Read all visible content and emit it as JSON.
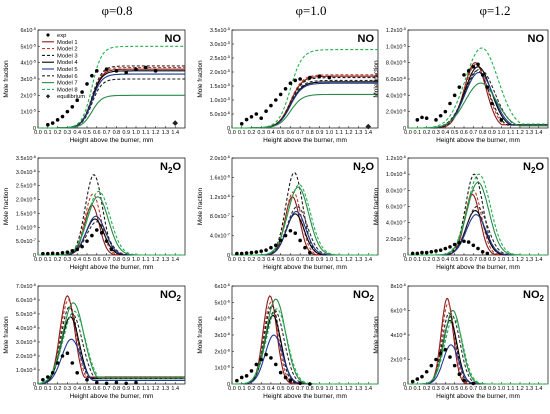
{
  "column_titles": [
    "φ=0.8",
    "φ=1.0",
    "φ=1.2"
  ],
  "legend": {
    "entries": [
      "exp",
      "Model 1",
      "Model 2",
      "Model 3",
      "Model 4",
      "Model 5",
      "Model 6",
      "Model 7",
      "Model 8",
      "equilibrium"
    ],
    "colors": [
      "#000000",
      "#8b1a1a",
      "#c0392b",
      "#1a1a1a",
      "#000000",
      "#1f3a93",
      "#2a2a2a",
      "#2a8a4a",
      "#22b14c",
      "#000000"
    ]
  },
  "series_styles": [
    {
      "color": "#8b1a1a",
      "dash": "none"
    },
    {
      "color": "#c0392b",
      "dash": "3,2"
    },
    {
      "color": "#1a1a1a",
      "dash": "3,2"
    },
    {
      "color": "#000000",
      "dash": "none"
    },
    {
      "color": "#1f3a93",
      "dash": "none"
    },
    {
      "color": "#2a2a2a",
      "dash": "3,2"
    },
    {
      "color": "#2a8a4a",
      "dash": "none"
    },
    {
      "color": "#22b14c",
      "dash": "3,2"
    }
  ],
  "chart_data": [
    {
      "type": "line",
      "species": "NO",
      "species_sub": "",
      "phi": "φ=0.8",
      "xlabel": "Height above the burner, mm",
      "ylabel": "Mole fraction",
      "xlim": [
        0,
        1.5
      ],
      "xticks": [
        "0.0",
        "0.1",
        "0.2",
        "0.3",
        "0.4",
        "0.5",
        "0.6",
        "0.7",
        "0.8",
        "0.9",
        "1.0",
        "1.1",
        "1.2",
        "1.3",
        "1.4"
      ],
      "ylim": [
        0,
        6e-05
      ],
      "yticks": [
        "0",
        "1x10-5",
        "2x10-5",
        "3x10-5",
        "4x10-5",
        "5x10-5",
        "6x10-5"
      ],
      "curve": {
        "type": "sigmoid",
        "mid": 0.55,
        "width": 0.05
      },
      "final_values": [
        3.6e-05,
        3.7e-05,
        3e-05,
        3.5e-05,
        3.3e-05,
        3.8e-05,
        2e-05,
        5e-05
      ],
      "exp_x": [
        0.1,
        0.15,
        0.2,
        0.25,
        0.3,
        0.35,
        0.4,
        0.45,
        0.5,
        0.55,
        0.6,
        0.7,
        0.8,
        0.9,
        1.0,
        1.1,
        1.2
      ],
      "exp_y": [
        2e-06,
        3e-06,
        5e-06,
        7e-06,
        1e-05,
        1.3e-05,
        1.7e-05,
        2.2e-05,
        2.7e-05,
        3.2e-05,
        3.5e-05,
        3.6e-05,
        3.5e-05,
        3.4e-05,
        3.6e-05,
        3.7e-05,
        3.5e-05
      ],
      "equilibrium": {
        "x": 1.4,
        "y": 3e-06
      },
      "show_legend": true
    },
    {
      "type": "line",
      "species": "NO",
      "species_sub": "",
      "phi": "φ=1.0",
      "xlabel": "Height above the burner, mm",
      "ylabel": "Mole fraction",
      "xlim": [
        0,
        1.5
      ],
      "xticks": [
        "0.0",
        "0.1",
        "0.2",
        "0.3",
        "0.4",
        "0.5",
        "0.6",
        "0.7",
        "0.8",
        "0.9",
        "1.0",
        "1.1",
        "1.2",
        "1.3",
        "1.4"
      ],
      "ylim": [
        0,
        3.5e-05
      ],
      "yticks": [
        "0",
        "5.0x10-6",
        "1.0x10-5",
        "1.5x10-5",
        "2.0x10-5",
        "2.5x10-5",
        "3.0x10-5",
        "3.5x10-5"
      ],
      "curve": {
        "type": "sigmoid",
        "mid": 0.6,
        "width": 0.06
      },
      "final_values": [
        1.85e-05,
        1.9e-05,
        1.8e-05,
        1.65e-05,
        1.6e-05,
        1.7e-05,
        1.2e-05,
        2.8e-05
      ],
      "exp_x": [
        0.1,
        0.15,
        0.2,
        0.25,
        0.3,
        0.35,
        0.4,
        0.45,
        0.5,
        0.55,
        0.6,
        0.65,
        0.7,
        0.8,
        0.9,
        1.0
      ],
      "exp_y": [
        1.5e-06,
        3e-06,
        4e-06,
        5e-06,
        3.5e-06,
        6e-06,
        8e-06,
        1e-05,
        1.2e-05,
        1.4e-05,
        1.6e-05,
        1.7e-05,
        1.75e-05,
        1.8e-05,
        1.85e-05,
        1.8e-05
      ],
      "equilibrium": {
        "x": 1.4,
        "y": 5e-07
      },
      "show_legend": false
    },
    {
      "type": "line",
      "species": "NO",
      "species_sub": "",
      "phi": "φ=1.2",
      "xlabel": "Height above the burner, mm",
      "ylabel": "Mole fraction",
      "xlim": [
        0,
        1.5
      ],
      "xticks": [
        "0.0",
        "0.1",
        "0.2",
        "0.3",
        "0.4",
        "0.5",
        "0.6",
        "0.7",
        "0.8",
        "0.9",
        "1.0",
        "1.1",
        "1.2",
        "1.3",
        "1.4"
      ],
      "ylim": [
        0,
        1.2e-05
      ],
      "yticks": [
        "0",
        "2.0x10-6",
        "4.0x10-6",
        "6.0x10-6",
        "8.0x10-6",
        "1.0x10-5",
        "1.2x10-5"
      ],
      "curve": {
        "type": "peak",
        "peak_x": 0.75,
        "width": 0.2,
        "tail": 0.05
      },
      "peak_values": [
        8e-06,
        7.8e-06,
        7e-06,
        7.5e-06,
        6.8e-06,
        7.2e-06,
        5.5e-06,
        9.8e-06
      ],
      "exp_x": [
        0.1,
        0.15,
        0.2,
        0.3,
        0.35,
        0.4,
        0.45,
        0.5,
        0.55,
        0.6,
        0.65,
        0.7,
        0.75,
        0.8,
        0.85,
        0.9,
        1.0
      ],
      "exp_y": [
        1e-06,
        1.3e-06,
        1.2e-06,
        1e-06,
        1.5e-06,
        2e-06,
        3e-06,
        4e-06,
        5e-06,
        6.5e-06,
        7e-06,
        7.5e-06,
        7.8e-06,
        6.5e-06,
        5e-06,
        3e-06,
        1e-06
      ],
      "show_legend": false
    },
    {
      "type": "line",
      "species": "N",
      "species_sub": "2",
      "species_tail": "O",
      "phi": "φ=0.8",
      "xlabel": "Height above the burner, mm",
      "ylabel": "Mole fraction",
      "xlim": [
        0,
        1.5
      ],
      "xticks": [
        "0.0",
        "0.1",
        "0.2",
        "0.3",
        "0.4",
        "0.5",
        "0.6",
        "0.7",
        "0.8",
        "0.9",
        "1.0",
        "1.1",
        "1.2",
        "1.3",
        "1.4"
      ],
      "ylim": [
        0,
        3.5e-06
      ],
      "yticks": [
        "0",
        "5.0x10-7",
        "1.0x10-6",
        "1.5x10-6",
        "2.0x10-6",
        "2.5x10-6",
        "3.0x10-6",
        "3.5x10-6"
      ],
      "curve": {
        "type": "peak",
        "peak_x": 0.58,
        "width": 0.13,
        "tail": 0.0
      },
      "peak_values": [
        1.8e-06,
        2.2e-06,
        2.9e-06,
        1.3e-06,
        1.4e-06,
        1.2e-06,
        2.1e-06,
        2.3e-06
      ],
      "exp_x": [
        0.05,
        0.1,
        0.15,
        0.2,
        0.25,
        0.3,
        0.35,
        0.4,
        0.45,
        0.5,
        0.55,
        0.6,
        0.65,
        0.7,
        0.75
      ],
      "exp_y": [
        5e-08,
        5e-08,
        6e-08,
        5e-08,
        8e-08,
        1e-07,
        1.5e-07,
        2e-07,
        3e-07,
        5e-07,
        7e-07,
        9e-07,
        8e-07,
        5e-07,
        2e-07
      ],
      "show_legend": false
    },
    {
      "type": "line",
      "species": "N",
      "species_sub": "2",
      "species_tail": "O",
      "phi": "φ=1.0",
      "xlabel": "Height above the burner, mm",
      "ylabel": "Mole fraction",
      "xlim": [
        0,
        1.5
      ],
      "xticks": [
        "0.0",
        "0.1",
        "0.2",
        "0.3",
        "0.4",
        "0.5",
        "0.6",
        "0.7",
        "0.8",
        "0.9",
        "1.0",
        "1.1",
        "1.2",
        "1.3",
        "1.4"
      ],
      "ylim": [
        0,
        2e-06
      ],
      "yticks": [
        "0",
        "4.0x10-7",
        "8.0x10-7",
        "1.2x10-6",
        "1.6x10-6",
        "2.0x10-6"
      ],
      "curve": {
        "type": "peak",
        "peak_x": 0.65,
        "width": 0.13,
        "tail": 0.0
      },
      "peak_values": [
        1.2e-06,
        1.3e-06,
        1.7e-06,
        8.5e-07,
        9e-07,
        1e-06,
        1.4e-06,
        1.45e-06
      ],
      "exp_x": [
        0.05,
        0.1,
        0.15,
        0.2,
        0.25,
        0.3,
        0.35,
        0.4,
        0.45,
        0.5,
        0.55,
        0.6,
        0.65,
        0.7,
        0.75,
        0.8
      ],
      "exp_y": [
        3e-08,
        3e-08,
        4e-08,
        5e-08,
        6e-08,
        8e-08,
        1e-07,
        1.5e-07,
        2e-07,
        3e-07,
        4e-07,
        5e-07,
        4.5e-07,
        3e-07,
        1.5e-07,
        5e-08
      ],
      "show_legend": false
    },
    {
      "type": "line",
      "species": "N",
      "species_sub": "2",
      "species_tail": "O",
      "phi": "φ=1.2",
      "xlabel": "Height above the burner, mm",
      "ylabel": "Mole fraction",
      "xlim": [
        0,
        1.5
      ],
      "xticks": [
        "0.0",
        "0.1",
        "0.2",
        "0.3",
        "0.4",
        "0.5",
        "0.6",
        "0.7",
        "0.8",
        "0.9",
        "1.0",
        "1.1",
        "1.2",
        "1.3",
        "1.4"
      ],
      "ylim": [
        0,
        1.2e-06
      ],
      "yticks": [
        "0",
        "2.0x10-7",
        "4.0x10-7",
        "6.0x10-7",
        "8.0x10-7",
        "1.0x10-6",
        "1.2x10-6"
      ],
      "curve": {
        "type": "peak",
        "peak_x": 0.72,
        "width": 0.14,
        "tail": 0.0
      },
      "peak_values": [
        7.5e-07,
        8e-07,
        1e-06,
        5.5e-07,
        5e-07,
        6e-07,
        9e-07,
        1e-06
      ],
      "exp_x": [
        0.05,
        0.1,
        0.15,
        0.2,
        0.25,
        0.3,
        0.35,
        0.4,
        0.45,
        0.5,
        0.55,
        0.6,
        0.65,
        0.7,
        0.75,
        0.8,
        0.85
      ],
      "exp_y": [
        2e-08,
        2e-08,
        3e-08,
        3e-08,
        4e-08,
        5e-08,
        6e-08,
        8e-08,
        1e-07,
        1.3e-07,
        1.5e-07,
        1.7e-07,
        1.6e-07,
        1.2e-07,
        8e-08,
        4e-08,
        2e-08
      ],
      "show_legend": false
    },
    {
      "type": "line",
      "species": "NO",
      "species_sub": "2",
      "species_tail": "",
      "phi": "φ=0.8",
      "xlabel": "Height above the burner, mm",
      "ylabel": "Mole fraction",
      "xlim": [
        0,
        1.5
      ],
      "xticks": [
        "0.0",
        "0.1",
        "0.2",
        "0.3",
        "0.4",
        "0.5",
        "0.6",
        "0.7",
        "0.8",
        "0.9",
        "1.0",
        "1.1",
        "1.2",
        "1.3",
        "1.4"
      ],
      "ylim": [
        0,
        7e-06
      ],
      "yticks": [
        "0",
        "1.0x10-6",
        "2.0x10-6",
        "3.0x10-6",
        "4.0x10-6",
        "5.0x10-6",
        "6.0x10-6",
        "7.0x10-6"
      ],
      "curve": {
        "type": "peak",
        "peak_x": 0.33,
        "width": 0.13,
        "tail": 0.08
      },
      "peak_values": [
        6.3e-06,
        6e-06,
        5.5e-06,
        4.8e-06,
        3.2e-06,
        5e-06,
        5.8e-06,
        5.2e-06
      ],
      "exp_x": [
        0.05,
        0.1,
        0.15,
        0.2,
        0.25,
        0.3,
        0.35,
        0.4,
        0.5,
        0.6,
        0.7,
        0.8,
        0.9,
        1.0
      ],
      "exp_y": [
        3e-07,
        5e-07,
        8e-07,
        1.5e-06,
        2e-06,
        2.2e-06,
        1.5e-06,
        8e-07,
        3e-07,
        1e-07,
        5e-08,
        1e-07,
        5e-08,
        1e-07
      ],
      "show_legend": false
    },
    {
      "type": "line",
      "species": "NO",
      "species_sub": "2",
      "species_tail": "",
      "phi": "φ=1.0",
      "xlabel": "Height above the burner, mm",
      "ylabel": "Mole fraction",
      "xlim": [
        0,
        1.5
      ],
      "xticks": [
        "0.0",
        "0.1",
        "0.2",
        "0.3",
        "0.4",
        "0.5",
        "0.6",
        "0.7",
        "0.8",
        "0.9",
        "1.0",
        "1.1",
        "1.2",
        "1.3",
        "1.4"
      ],
      "ylim": [
        0,
        6e-06
      ],
      "yticks": [
        "0",
        "1x10-6",
        "2x10-6",
        "3x10-6",
        "4x10-6",
        "5x10-6",
        "6x10-6"
      ],
      "curve": {
        "type": "peak",
        "peak_x": 0.42,
        "width": 0.12,
        "tail": 0.0
      },
      "peak_values": [
        5.4e-06,
        5e-06,
        4.8e-06,
        4.2e-06,
        3e-06,
        4.5e-06,
        5.2e-06,
        4.6e-06
      ],
      "exp_x": [
        0.05,
        0.1,
        0.15,
        0.2,
        0.25,
        0.3,
        0.35,
        0.4,
        0.45,
        0.5,
        0.55,
        0.6,
        0.7,
        0.8
      ],
      "exp_y": [
        2e-07,
        4e-07,
        5e-07,
        8e-07,
        1.2e-06,
        1.5e-06,
        1.8e-06,
        1.6e-06,
        1.2e-06,
        7e-07,
        4e-07,
        2e-07,
        5e-08,
        0.0
      ],
      "show_legend": false
    },
    {
      "type": "line",
      "species": "NO",
      "species_sub": "2",
      "species_tail": "",
      "phi": "φ=1.2",
      "xlabel": "Height above the burner, mm",
      "ylabel": "Mole fraction",
      "xlim": [
        0,
        1.5
      ],
      "xticks": [
        "0.0",
        "0.1",
        "0.2",
        "0.3",
        "0.4",
        "0.5",
        "0.6",
        "0.7",
        "0.8",
        "0.9",
        "1.0",
        "1.1",
        "1.2",
        "1.3",
        "1.4"
      ],
      "ylim": [
        0,
        8e-06
      ],
      "yticks": [
        "0",
        "2x10-6",
        "4x10-6",
        "6x10-6",
        "8x10-6"
      ],
      "curve": {
        "type": "peak",
        "peak_x": 0.45,
        "width": 0.11,
        "tail": 0.0
      },
      "peak_values": [
        7e-06,
        6.6e-06,
        5.8e-06,
        5.2e-06,
        3.2e-06,
        5.6e-06,
        6e-06,
        5.4e-06
      ],
      "exp_x": [
        0.05,
        0.1,
        0.15,
        0.2,
        0.25,
        0.3,
        0.35,
        0.4,
        0.45,
        0.5,
        0.55,
        0.6,
        0.7
      ],
      "exp_y": [
        2e-07,
        4e-07,
        6e-07,
        1e-06,
        1.5e-06,
        2e-06,
        2.5e-06,
        2.8e-06,
        2.2e-06,
        1.5e-06,
        8e-07,
        3e-07,
        5e-08
      ],
      "show_legend": false
    }
  ]
}
